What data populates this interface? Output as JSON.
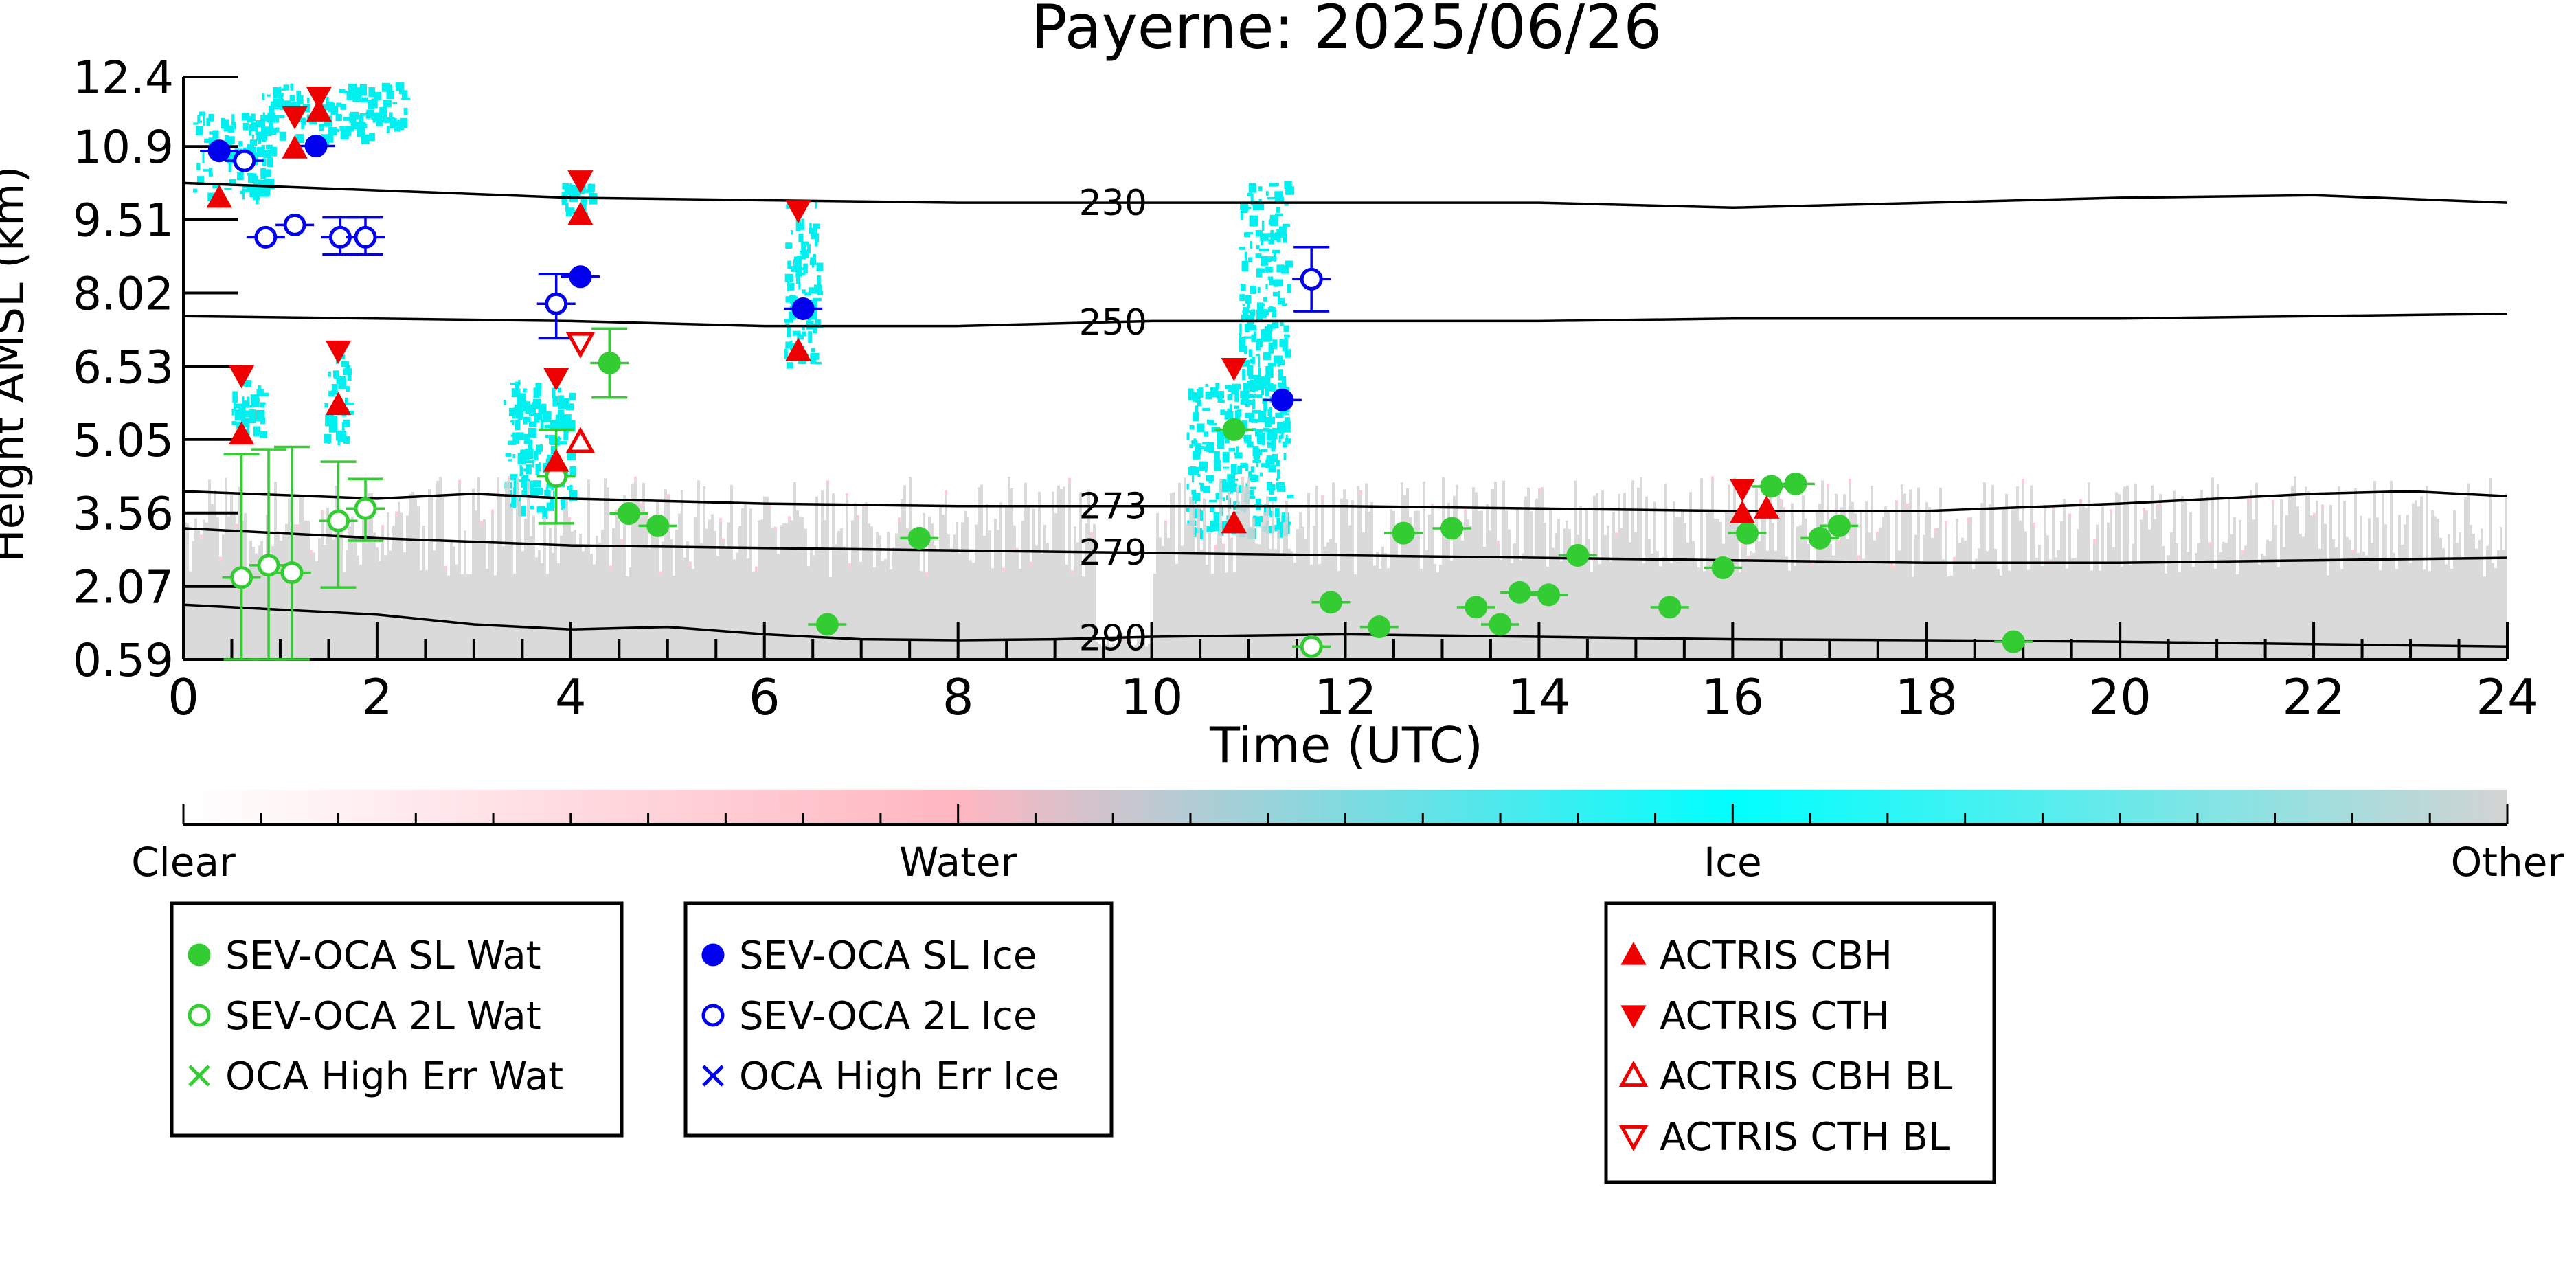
{
  "chart_data": {
    "type": "scatter",
    "title": "Payerne: 2025/06/26",
    "xlabel": "Time (UTC)",
    "ylabel": "Height AMSL (km)",
    "xlim": [
      0,
      24
    ],
    "ylim": [
      0.59,
      12.4
    ],
    "x_ticks": [
      0,
      2,
      4,
      6,
      8,
      10,
      12,
      14,
      16,
      18,
      20,
      22,
      24
    ],
    "y_ticks": [
      "0.59",
      "2.07",
      "3.56",
      "5.05",
      "6.53",
      "8.02",
      "9.51",
      "10.9",
      "12.4"
    ],
    "y_tick_values": [
      0.59,
      2.07,
      3.56,
      5.05,
      6.53,
      8.02,
      9.51,
      10.99,
      12.4
    ],
    "colorbar": {
      "labels": [
        "Clear",
        "Water",
        "Ice",
        "Other"
      ],
      "colors": [
        "#ffffff",
        "#ffb6c1",
        "#00ffff",
        "#d3d3d3"
      ]
    },
    "isotherms": [
      {
        "label": "230",
        "points": [
          [
            0,
            10.25
          ],
          [
            2,
            10.1
          ],
          [
            4,
            9.95
          ],
          [
            6,
            9.9
          ],
          [
            8,
            9.85
          ],
          [
            10,
            9.85
          ],
          [
            12,
            9.85
          ],
          [
            14,
            9.85
          ],
          [
            16,
            9.75
          ],
          [
            18,
            9.85
          ],
          [
            20,
            9.95
          ],
          [
            22,
            10.0
          ],
          [
            24,
            9.85
          ]
        ]
      },
      {
        "label": "250",
        "points": [
          [
            0,
            7.55
          ],
          [
            2,
            7.5
          ],
          [
            4,
            7.45
          ],
          [
            6,
            7.35
          ],
          [
            8,
            7.35
          ],
          [
            10,
            7.45
          ],
          [
            12,
            7.45
          ],
          [
            14,
            7.45
          ],
          [
            16,
            7.5
          ],
          [
            18,
            7.5
          ],
          [
            20,
            7.5
          ],
          [
            22,
            7.55
          ],
          [
            24,
            7.6
          ]
        ]
      },
      {
        "label": "273",
        "points": [
          [
            0,
            4.0
          ],
          [
            2,
            3.85
          ],
          [
            3,
            3.95
          ],
          [
            4,
            3.85
          ],
          [
            6,
            3.75
          ],
          [
            8,
            3.7
          ],
          [
            10,
            3.7
          ],
          [
            12,
            3.7
          ],
          [
            14,
            3.65
          ],
          [
            16,
            3.6
          ],
          [
            18,
            3.6
          ],
          [
            20,
            3.75
          ],
          [
            22,
            3.95
          ],
          [
            23,
            4.0
          ],
          [
            24,
            3.9
          ]
        ]
      },
      {
        "label": "279",
        "points": [
          [
            0,
            3.25
          ],
          [
            2,
            3.05
          ],
          [
            4,
            2.9
          ],
          [
            6,
            2.85
          ],
          [
            8,
            2.8
          ],
          [
            10,
            2.75
          ],
          [
            12,
            2.7
          ],
          [
            14,
            2.65
          ],
          [
            16,
            2.6
          ],
          [
            18,
            2.55
          ],
          [
            20,
            2.55
          ],
          [
            22,
            2.6
          ],
          [
            24,
            2.65
          ]
        ]
      },
      {
        "label": "290",
        "points": [
          [
            0,
            1.7
          ],
          [
            1,
            1.6
          ],
          [
            2,
            1.5
          ],
          [
            3,
            1.3
          ],
          [
            4,
            1.2
          ],
          [
            5,
            1.25
          ],
          [
            6,
            1.1
          ],
          [
            7,
            1.0
          ],
          [
            8,
            0.98
          ],
          [
            9,
            1.0
          ],
          [
            10,
            1.05
          ],
          [
            12,
            1.1
          ],
          [
            14,
            1.05
          ],
          [
            16,
            1.0
          ],
          [
            18,
            0.98
          ],
          [
            20,
            0.95
          ],
          [
            22,
            0.9
          ],
          [
            24,
            0.85
          ]
        ]
      }
    ],
    "cloud_regions": [
      {
        "type": "ice",
        "x": [
          0.1,
          0.9
        ],
        "y": [
          10.0,
          11.7
        ]
      },
      {
        "type": "ice",
        "x": [
          0.8,
          2.3
        ],
        "y": [
          11.2,
          12.3
        ]
      },
      {
        "type": "ice",
        "x": [
          0.5,
          0.8
        ],
        "y": [
          5.1,
          6.3
        ]
      },
      {
        "type": "ice",
        "x": [
          1.45,
          1.7
        ],
        "y": [
          5.1,
          6.8
        ]
      },
      {
        "type": "ice",
        "x": [
          3.3,
          4.0
        ],
        "y": [
          3.6,
          6.3
        ]
      },
      {
        "type": "ice",
        "x": [
          3.9,
          4.2
        ],
        "y": [
          9.6,
          10.3
        ]
      },
      {
        "type": "ice",
        "x": [
          6.2,
          6.55
        ],
        "y": [
          6.6,
          9.9
        ]
      },
      {
        "type": "ice",
        "x": [
          10.35,
          11.4
        ],
        "y": [
          3.2,
          6.2
        ]
      },
      {
        "type": "ice",
        "x": [
          10.9,
          11.4
        ],
        "y": [
          6.0,
          10.3
        ]
      },
      {
        "type": "other",
        "x": [
          0,
          24
        ],
        "y": [
          0.59,
          4.3
        ]
      }
    ],
    "series": [
      {
        "name": "SEV-OCA SL Wat",
        "marker": "filled-circle",
        "color": "#33cc33",
        "points": [
          {
            "x": 4.4,
            "y": 6.6,
            "yerr": [
              5.9,
              7.3
            ]
          },
          {
            "x": 4.6,
            "y": 3.55
          },
          {
            "x": 4.9,
            "y": 3.3
          },
          {
            "x": 6.65,
            "y": 1.3
          },
          {
            "x": 7.6,
            "y": 3.05
          },
          {
            "x": 10.85,
            "y": 5.25
          },
          {
            "x": 11.85,
            "y": 1.75
          },
          {
            "x": 12.35,
            "y": 1.25
          },
          {
            "x": 12.6,
            "y": 3.15
          },
          {
            "x": 13.1,
            "y": 3.25
          },
          {
            "x": 13.35,
            "y": 1.65
          },
          {
            "x": 13.6,
            "y": 1.3
          },
          {
            "x": 13.8,
            "y": 1.95
          },
          {
            "x": 14.1,
            "y": 1.9
          },
          {
            "x": 14.4,
            "y": 2.7
          },
          {
            "x": 15.35,
            "y": 1.65
          },
          {
            "x": 15.9,
            "y": 2.45
          },
          {
            "x": 16.15,
            "y": 3.15
          },
          {
            "x": 16.4,
            "y": 4.1
          },
          {
            "x": 16.65,
            "y": 4.15
          },
          {
            "x": 16.9,
            "y": 3.05
          },
          {
            "x": 17.1,
            "y": 3.3
          },
          {
            "x": 18.9,
            "y": 0.95
          }
        ]
      },
      {
        "name": "SEV-OCA 2L Wat",
        "marker": "open-circle",
        "color": "#33cc33",
        "points": [
          {
            "x": 0.6,
            "y": 2.25,
            "yerr": [
              0.59,
              4.75
            ]
          },
          {
            "x": 0.88,
            "y": 2.5,
            "yerr": [
              0.59,
              4.85
            ]
          },
          {
            "x": 1.12,
            "y": 2.35,
            "yerr": [
              0.59,
              4.9
            ]
          },
          {
            "x": 1.6,
            "y": 3.4,
            "yerr": [
              2.05,
              4.6
            ]
          },
          {
            "x": 1.88,
            "y": 3.65,
            "yerr": [
              3.0,
              4.25
            ]
          },
          {
            "x": 3.85,
            "y": 4.3,
            "yerr": [
              3.35,
              5.25
            ]
          },
          {
            "x": 11.65,
            "y": 0.85
          }
        ]
      },
      {
        "name": "OCA High Err Wat",
        "marker": "x",
        "color": "#33cc33",
        "points": []
      },
      {
        "name": "SEV-OCA SL Ice",
        "marker": "filled-circle",
        "color": "#0000ee",
        "points": [
          {
            "x": 0.37,
            "y": 10.9
          },
          {
            "x": 1.37,
            "y": 11.0
          },
          {
            "x": 4.1,
            "y": 8.35
          },
          {
            "x": 6.4,
            "y": 7.7
          },
          {
            "x": 11.35,
            "y": 5.85
          }
        ]
      },
      {
        "name": "SEV-OCA 2L Ice",
        "marker": "open-circle",
        "color": "#0000ee",
        "points": [
          {
            "x": 0.63,
            "y": 10.7
          },
          {
            "x": 0.85,
            "y": 9.15
          },
          {
            "x": 1.15,
            "y": 9.4
          },
          {
            "x": 1.62,
            "y": 9.15,
            "yerr": [
              8.8,
              9.55
            ]
          },
          {
            "x": 1.88,
            "y": 9.15,
            "yerr": [
              8.8,
              9.55
            ]
          },
          {
            "x": 3.85,
            "y": 7.8,
            "yerr": [
              7.1,
              8.4
            ]
          },
          {
            "x": 11.65,
            "y": 8.3,
            "yerr": [
              7.65,
              8.95
            ]
          }
        ]
      },
      {
        "name": "OCA High Err Ice",
        "marker": "x",
        "color": "#0000ee",
        "points": []
      },
      {
        "name": "ACTRIS CBH",
        "marker": "triangle-up-filled",
        "color": "#ee0000",
        "points": [
          {
            "x": 0.37,
            "y": 9.95
          },
          {
            "x": 0.6,
            "y": 5.15
          },
          {
            "x": 1.15,
            "y": 10.95
          },
          {
            "x": 1.4,
            "y": 11.7
          },
          {
            "x": 1.6,
            "y": 5.75
          },
          {
            "x": 3.85,
            "y": 4.6
          },
          {
            "x": 4.1,
            "y": 9.6
          },
          {
            "x": 6.35,
            "y": 6.85
          },
          {
            "x": 10.85,
            "y": 3.35
          },
          {
            "x": 16.1,
            "y": 3.55
          },
          {
            "x": 16.35,
            "y": 3.65
          }
        ]
      },
      {
        "name": "ACTRIS CTH",
        "marker": "triangle-down-filled",
        "color": "#ee0000",
        "points": [
          {
            "x": 0.6,
            "y": 6.35
          },
          {
            "x": 1.15,
            "y": 11.6
          },
          {
            "x": 1.4,
            "y": 12.0
          },
          {
            "x": 1.6,
            "y": 6.85
          },
          {
            "x": 3.85,
            "y": 6.3
          },
          {
            "x": 4.1,
            "y": 10.3
          },
          {
            "x": 6.35,
            "y": 9.7
          },
          {
            "x": 10.85,
            "y": 6.5
          },
          {
            "x": 16.1,
            "y": 4.05
          }
        ]
      },
      {
        "name": "ACTRIS CBH BL",
        "marker": "triangle-up-open",
        "color": "#ee0000",
        "points": [
          {
            "x": 4.1,
            "y": 5.0
          }
        ]
      },
      {
        "name": "ACTRIS CTH BL",
        "marker": "triangle-down-open",
        "color": "#ee0000",
        "points": [
          {
            "x": 4.1,
            "y": 7.0
          }
        ]
      }
    ],
    "legend_groups": [
      [
        "SEV-OCA SL Wat",
        "SEV-OCA 2L Wat",
        "OCA High Err Wat"
      ],
      [
        "SEV-OCA SL Ice",
        "SEV-OCA 2L Ice",
        "OCA High Err Ice"
      ],
      [
        "ACTRIS CBH",
        "ACTRIS CTH",
        "ACTRIS CBH BL",
        "ACTRIS CTH BL"
      ]
    ],
    "legend_placement": "below",
    "grid": false
  }
}
